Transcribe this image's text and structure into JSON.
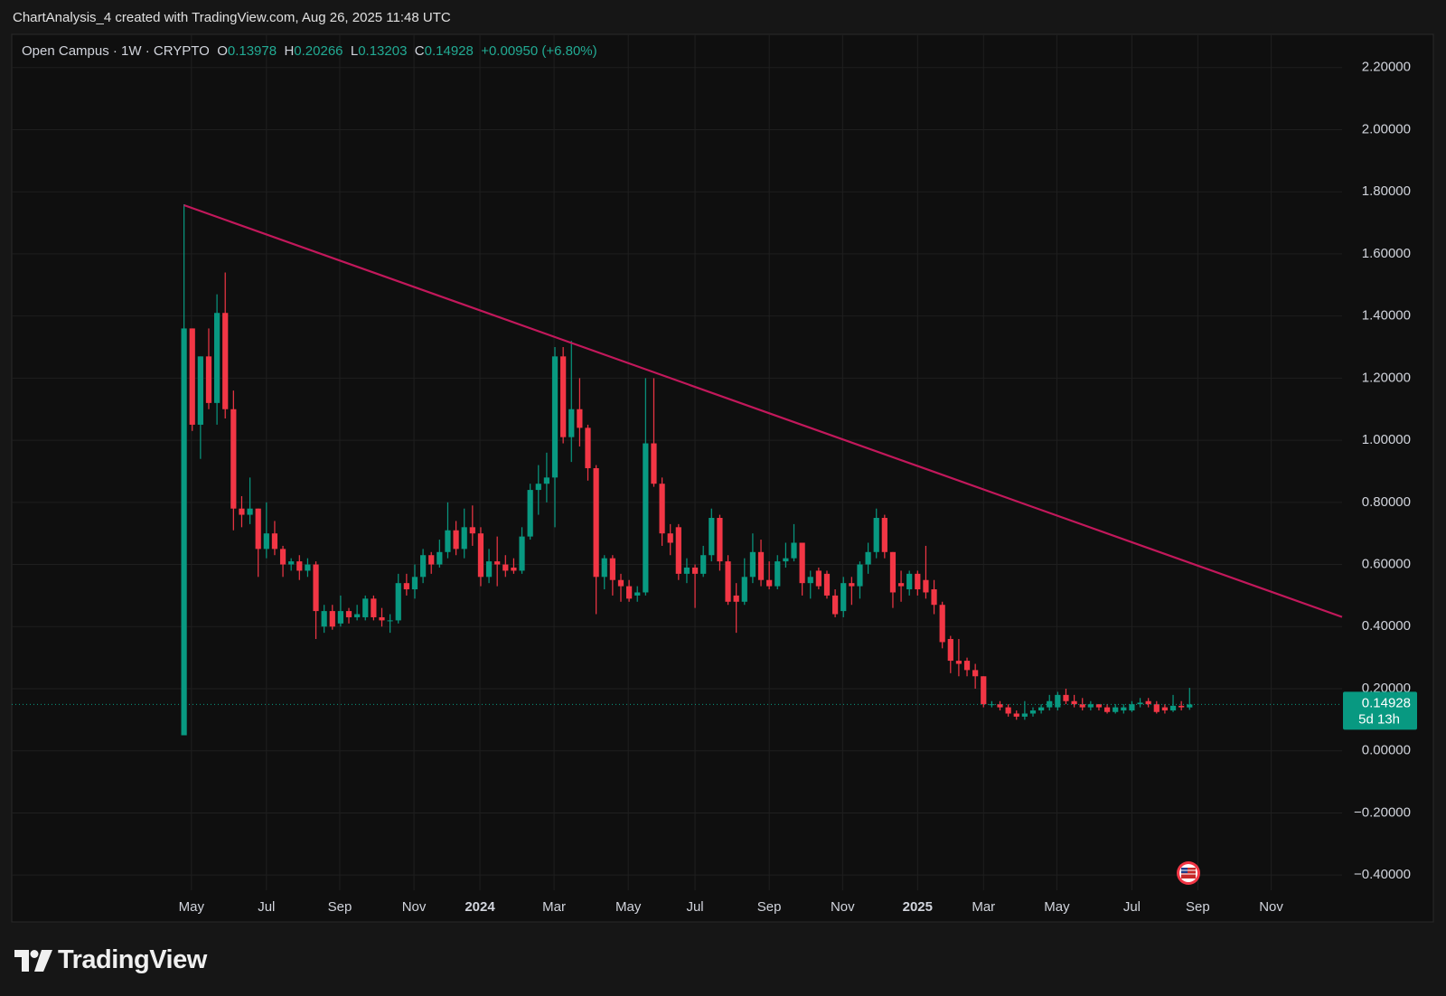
{
  "header": "ChartAnalysis_4 created with TradingView.com, Aug 26, 2025 11:48 UTC",
  "footer": {
    "brand": "TradingView"
  },
  "chart_data": {
    "type": "candlestick",
    "legend": {
      "symbol": "Open Campus · 1W · CRYPTO",
      "o_label": "O",
      "o": "0.13978",
      "h_label": "H",
      "h": "0.20266",
      "l_label": "L",
      "l": "0.13203",
      "c_label": "C",
      "c": "0.14928",
      "change": "+0.00950 (+6.80%)"
    },
    "up_color": "#089981",
    "down_color": "#f23645",
    "candles": {
      "open": [
        0.05,
        1.36,
        1.05,
        1.27,
        1.12,
        1.41,
        1.1,
        0.78,
        0.76,
        0.78,
        0.65,
        0.7,
        0.65,
        0.6,
        0.61,
        0.58,
        0.6,
        0.4,
        0.45,
        0.41,
        0.45,
        0.43,
        0.43,
        0.49,
        0.43,
        0.42,
        0.42,
        0.54,
        0.52,
        0.56,
        0.63,
        0.6,
        0.64,
        0.71,
        0.65,
        0.72,
        0.7,
        0.56,
        0.61,
        0.6,
        0.59,
        0.58,
        0.69,
        0.84,
        0.86,
        0.88,
        1.27,
        1.01,
        1.1,
        1.04,
        0.91,
        0.56,
        0.62,
        0.55,
        0.53,
        0.5,
        0.51,
        0.99,
        0.86,
        0.7,
        0.72,
        0.57,
        0.59,
        0.57,
        0.63,
        0.75,
        0.61,
        0.5,
        0.48,
        0.56,
        0.64,
        0.55,
        0.53,
        0.61,
        0.62,
        0.67,
        0.54,
        0.58,
        0.57,
        0.5,
        0.45,
        0.54,
        0.53,
        0.6,
        0.64,
        0.75,
        0.64,
        0.54,
        0.52,
        0.57,
        0.55,
        0.52,
        0.47,
        0.36,
        0.29,
        0.29,
        0.26,
        0.24,
        0.15,
        0.15,
        0.14,
        0.12,
        0.11,
        0.12,
        0.13,
        0.14,
        0.14,
        0.18,
        0.16,
        0.15,
        0.14,
        0.15,
        0.14,
        0.125,
        0.13,
        0.13,
        0.15,
        0.16,
        0.15,
        0.14,
        0.13,
        0.145,
        0.13978
      ],
      "high": [
        1.76,
        1.36,
        1.27,
        1.36,
        1.47,
        1.54,
        1.16,
        0.82,
        0.88,
        0.78,
        0.8,
        0.74,
        0.66,
        0.62,
        0.63,
        0.62,
        0.61,
        0.47,
        0.47,
        0.5,
        0.46,
        0.47,
        0.5,
        0.5,
        0.46,
        0.44,
        0.57,
        0.57,
        0.6,
        0.65,
        0.64,
        0.68,
        0.8,
        0.74,
        0.78,
        0.79,
        0.72,
        0.65,
        0.69,
        0.63,
        0.62,
        0.72,
        0.86,
        0.92,
        0.96,
        1.3,
        1.3,
        1.32,
        1.2,
        1.05,
        0.92,
        0.63,
        0.63,
        0.57,
        0.55,
        0.53,
        1.2,
        1.2,
        0.88,
        0.73,
        0.73,
        0.62,
        0.6,
        0.66,
        0.78,
        0.76,
        0.63,
        0.54,
        0.62,
        0.7,
        0.68,
        0.61,
        0.63,
        0.67,
        0.73,
        0.67,
        0.58,
        0.59,
        0.58,
        0.52,
        0.56,
        0.56,
        0.61,
        0.67,
        0.78,
        0.76,
        0.64,
        0.58,
        0.58,
        0.58,
        0.66,
        0.55,
        0.48,
        0.37,
        0.36,
        0.3,
        0.28,
        0.24,
        0.16,
        0.16,
        0.15,
        0.13,
        0.16,
        0.14,
        0.15,
        0.18,
        0.19,
        0.2,
        0.18,
        0.17,
        0.16,
        0.15,
        0.15,
        0.15,
        0.15,
        0.16,
        0.17,
        0.17,
        0.16,
        0.15,
        0.18,
        0.16,
        0.20266
      ],
      "low": [
        0.05,
        1.03,
        0.94,
        1.1,
        1.05,
        1.07,
        0.71,
        0.72,
        0.73,
        0.56,
        0.62,
        0.63,
        0.56,
        0.58,
        0.55,
        0.56,
        0.36,
        0.38,
        0.39,
        0.4,
        0.41,
        0.42,
        0.42,
        0.42,
        0.4,
        0.38,
        0.41,
        0.5,
        0.49,
        0.54,
        0.57,
        0.59,
        0.62,
        0.63,
        0.62,
        0.66,
        0.53,
        0.54,
        0.53,
        0.56,
        0.57,
        0.57,
        0.68,
        0.76,
        0.8,
        0.72,
        0.99,
        0.93,
        0.98,
        0.87,
        0.44,
        0.52,
        0.5,
        0.48,
        0.48,
        0.48,
        0.5,
        0.85,
        0.66,
        0.63,
        0.55,
        0.54,
        0.46,
        0.56,
        0.61,
        0.58,
        0.47,
        0.38,
        0.47,
        0.54,
        0.53,
        0.52,
        0.52,
        0.59,
        0.61,
        0.5,
        0.49,
        0.52,
        0.49,
        0.43,
        0.43,
        0.47,
        0.49,
        0.57,
        0.62,
        0.62,
        0.46,
        0.48,
        0.5,
        0.5,
        0.49,
        0.44,
        0.33,
        0.25,
        0.24,
        0.24,
        0.2,
        0.14,
        0.14,
        0.13,
        0.11,
        0.1,
        0.1,
        0.11,
        0.12,
        0.13,
        0.13,
        0.15,
        0.14,
        0.13,
        0.13,
        0.13,
        0.12,
        0.12,
        0.12,
        0.125,
        0.14,
        0.14,
        0.12,
        0.12,
        0.125,
        0.13,
        0.13203
      ],
      "close": [
        1.36,
        1.05,
        1.27,
        1.12,
        1.41,
        1.1,
        0.78,
        0.76,
        0.78,
        0.65,
        0.7,
        0.65,
        0.6,
        0.61,
        0.58,
        0.6,
        0.45,
        0.45,
        0.4,
        0.45,
        0.43,
        0.44,
        0.49,
        0.43,
        0.42,
        0.42,
        0.54,
        0.52,
        0.56,
        0.63,
        0.6,
        0.64,
        0.71,
        0.65,
        0.72,
        0.7,
        0.56,
        0.61,
        0.6,
        0.58,
        0.58,
        0.69,
        0.84,
        0.86,
        0.88,
        1.27,
        1.01,
        1.1,
        1.04,
        0.91,
        0.56,
        0.62,
        0.55,
        0.53,
        0.49,
        0.51,
        0.99,
        0.86,
        0.7,
        0.67,
        0.57,
        0.59,
        0.57,
        0.63,
        0.75,
        0.61,
        0.48,
        0.48,
        0.56,
        0.64,
        0.55,
        0.53,
        0.61,
        0.62,
        0.67,
        0.54,
        0.56,
        0.53,
        0.5,
        0.44,
        0.54,
        0.53,
        0.6,
        0.64,
        0.75,
        0.64,
        0.51,
        0.53,
        0.57,
        0.52,
        0.51,
        0.47,
        0.35,
        0.29,
        0.28,
        0.26,
        0.24,
        0.15,
        0.15,
        0.14,
        0.12,
        0.11,
        0.12,
        0.13,
        0.14,
        0.16,
        0.18,
        0.16,
        0.15,
        0.14,
        0.15,
        0.14,
        0.125,
        0.14,
        0.14,
        0.15,
        0.155,
        0.15,
        0.125,
        0.13,
        0.145,
        0.14,
        0.14928
      ]
    },
    "trendline": {
      "x": [
        0,
        140.5
      ],
      "y": [
        1.757,
        0.431
      ],
      "color": "#c2185b"
    },
    "price_line": {
      "value": 0.14928,
      "label": "0.14928",
      "countdown": "5d 13h",
      "color": "#089981"
    },
    "xlim": [
      -20.9,
      140.5
    ],
    "xticks": [
      {
        "value": 0.9,
        "label": "May"
      },
      {
        "value": 10,
        "label": "Jul"
      },
      {
        "value": 18.9,
        "label": "Sep"
      },
      {
        "value": 27.9,
        "label": "Nov"
      },
      {
        "value": 35.9,
        "label": "2024"
      },
      {
        "value": 44.9,
        "label": "Mar"
      },
      {
        "value": 53.9,
        "label": "May"
      },
      {
        "value": 62,
        "label": "Jul"
      },
      {
        "value": 71,
        "label": "Sep"
      },
      {
        "value": 79.9,
        "label": "Nov"
      },
      {
        "value": 89,
        "label": "2025"
      },
      {
        "value": 97,
        "label": "Mar"
      },
      {
        "value": 105.9,
        "label": "May"
      },
      {
        "value": 115,
        "label": "Jul"
      },
      {
        "value": 123,
        "label": "Sep"
      },
      {
        "value": 131.9,
        "label": "Nov"
      }
    ],
    "ylim": [
      -0.449,
      2.307
    ],
    "yticks": [
      {
        "value": 2.2,
        "label": "2.20000"
      },
      {
        "value": 2.0,
        "label": "2.00000"
      },
      {
        "value": 1.8,
        "label": "1.80000"
      },
      {
        "value": 1.6,
        "label": "1.60000"
      },
      {
        "value": 1.4,
        "label": "1.40000"
      },
      {
        "value": 1.2,
        "label": "1.20000"
      },
      {
        "value": 1.0,
        "label": "1.00000"
      },
      {
        "value": 0.8,
        "label": "0.80000"
      },
      {
        "value": 0.6,
        "label": "0.60000"
      },
      {
        "value": 0.4,
        "label": "0.40000"
      },
      {
        "value": 0.2,
        "label": "0.20000"
      },
      {
        "value": 0,
        "label": "0.00000"
      },
      {
        "value": -0.2,
        "label": "−0.20000"
      },
      {
        "value": -0.4,
        "label": "−0.40000"
      }
    ],
    "grid": true
  }
}
